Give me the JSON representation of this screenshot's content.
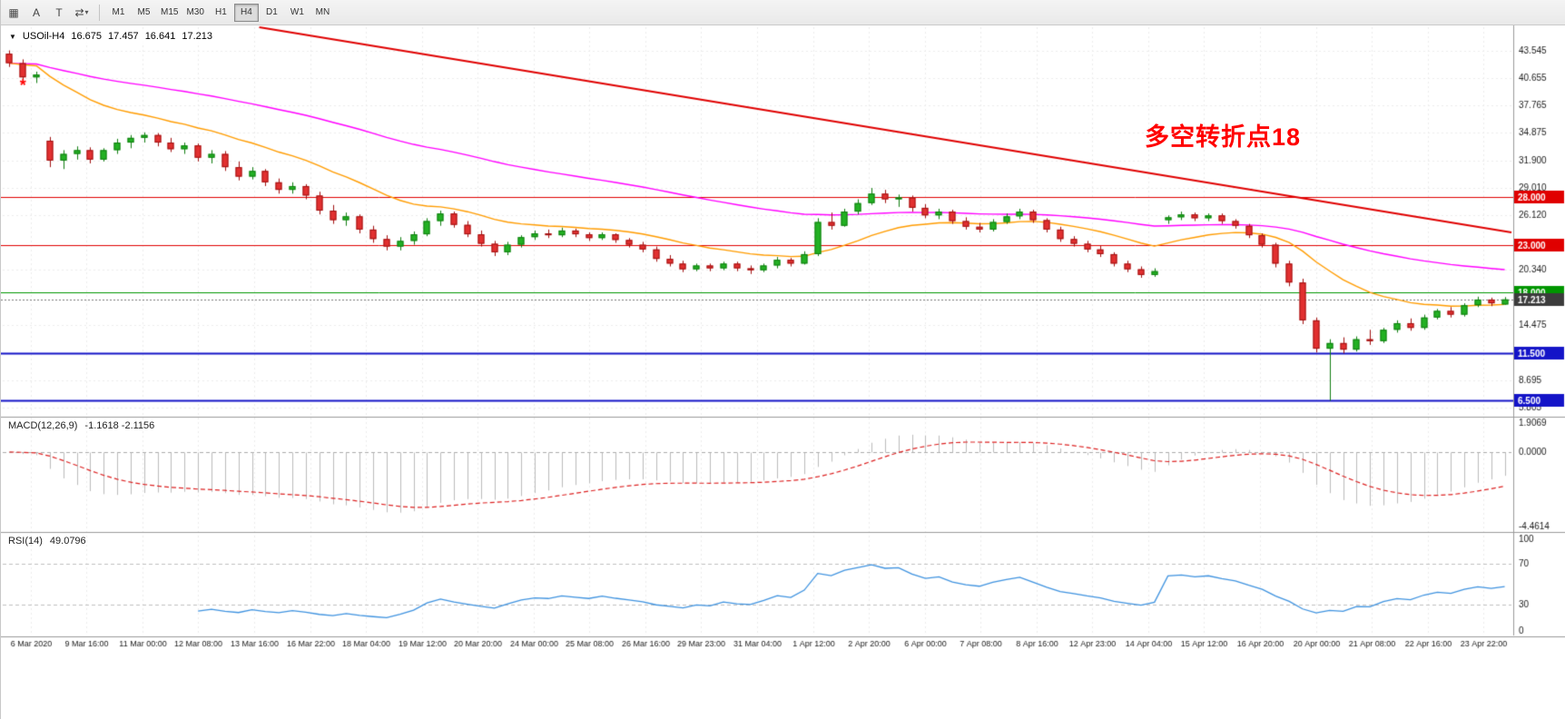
{
  "toolbar": {
    "icons": {
      "grid": "▦",
      "a": "A",
      "t": "T",
      "shapes": "⇄",
      "caret": "▾"
    },
    "timeframes": [
      {
        "label": "M1",
        "selected": false
      },
      {
        "label": "M5",
        "selected": false
      },
      {
        "label": "M15",
        "selected": false
      },
      {
        "label": "M30",
        "selected": false
      },
      {
        "label": "H1",
        "selected": false
      },
      {
        "label": "H4",
        "selected": true
      },
      {
        "label": "D1",
        "selected": false
      },
      {
        "label": "W1",
        "selected": false
      },
      {
        "label": "MN",
        "selected": false
      }
    ]
  },
  "info_line": {
    "collapse_glyph": "▼",
    "symbol": "USOil-H4",
    "open": "16.675",
    "high": "17.457",
    "low": "16.641",
    "close": "17.213"
  },
  "chart_data": {
    "type": "candlestick",
    "symbol": "USOil",
    "timeframe": "H4",
    "ylim": [
      5.0,
      46.0
    ],
    "up_color": "#23b123",
    "up_border": "#0f7d0f",
    "down_color": "#e23030",
    "down_border": "#a01010",
    "price_axis_labels": [
      "43.545",
      "40.655",
      "37.765",
      "34.875",
      "31.900",
      "29.010",
      "26.120",
      "20.340",
      "14.475",
      "8.695",
      "5.805"
    ],
    "x_labels": [
      "6 Mar 2020",
      "9 Mar 16:00",
      "11 Mar 00:00",
      "12 Mar 08:00",
      "13 Mar 16:00",
      "16 Mar 22:00",
      "18 Mar 04:00",
      "19 Mar 12:00",
      "20 Mar 20:00",
      "24 Mar 00:00",
      "25 Mar 08:00",
      "26 Mar 16:00",
      "29 Mar 23:00",
      "31 Mar 04:00",
      "1 Apr 12:00",
      "2 Apr 20:00",
      "6 Apr 00:00",
      "7 Apr 08:00",
      "8 Apr 16:00",
      "12 Apr 23:00",
      "14 Apr 04:00",
      "15 Apr 12:00",
      "16 Apr 20:00",
      "20 Apr 00:00",
      "21 Apr 08:00",
      "22 Apr 16:00",
      "23 Apr 22:00"
    ],
    "hlines": [
      {
        "price": 28.0,
        "label": "28.000",
        "color": "#e00000",
        "width": 1
      },
      {
        "price": 23.0,
        "label": "23.000",
        "color": "#e00000",
        "width": 1
      },
      {
        "price": 18.0,
        "label": "18.000",
        "color": "#009600",
        "width": 1
      },
      {
        "price": 11.5,
        "label": "11.500",
        "color": "#1414c8",
        "width": 2
      },
      {
        "price": 6.5,
        "label": "6.500",
        "color": "#1414c8",
        "width": 2
      }
    ],
    "current_price": {
      "price": 17.213,
      "label": "17.213",
      "line_color": "#777777",
      "tag_bg": "#3c3c3c"
    },
    "trendline": {
      "color": "#e00000",
      "width": 2,
      "x1_frac": 0.17,
      "price1": 46.0,
      "x2_frac": 1.0,
      "price2": 24.3
    },
    "ma_fast": {
      "color": "#ff9c00",
      "period": 17,
      "width": 1.4
    },
    "ma_slow": {
      "color": "#ff00ff",
      "period": 55,
      "width": 1.4
    },
    "marker": {
      "glyph": "*",
      "color": "#ff0000",
      "index": 1,
      "price": 39.9
    },
    "annotation": {
      "text": "多空转折点18",
      "color": "#ff0000"
    },
    "candles": [
      [
        43.2,
        43.55,
        41.8,
        42.2
      ],
      [
        42.2,
        42.6,
        40.3,
        40.7
      ],
      [
        40.7,
        41.3,
        40.1,
        41.0
      ],
      [
        34.0,
        34.4,
        31.2,
        31.9
      ],
      [
        31.9,
        33.0,
        31.0,
        32.6
      ],
      [
        32.6,
        33.4,
        32.0,
        33.0
      ],
      [
        33.0,
        33.3,
        31.6,
        32.0
      ],
      [
        32.0,
        33.2,
        31.8,
        33.0
      ],
      [
        33.0,
        34.2,
        32.6,
        33.8
      ],
      [
        33.8,
        34.6,
        33.2,
        34.3
      ],
      [
        34.3,
        34.88,
        33.8,
        34.6
      ],
      [
        34.6,
        34.8,
        33.4,
        33.8
      ],
      [
        33.8,
        34.3,
        32.8,
        33.1
      ],
      [
        33.1,
        33.8,
        32.6,
        33.5
      ],
      [
        33.5,
        33.7,
        31.8,
        32.2
      ],
      [
        32.2,
        33.0,
        31.6,
        32.6
      ],
      [
        32.6,
        32.9,
        30.8,
        31.2
      ],
      [
        31.2,
        31.8,
        29.8,
        30.2
      ],
      [
        30.2,
        31.2,
        29.9,
        30.8
      ],
      [
        30.8,
        31.0,
        29.2,
        29.6
      ],
      [
        29.6,
        30.0,
        28.4,
        28.8
      ],
      [
        28.8,
        29.6,
        28.4,
        29.2
      ],
      [
        29.2,
        29.4,
        27.8,
        28.2
      ],
      [
        28.2,
        28.6,
        26.2,
        26.6
      ],
      [
        26.6,
        27.2,
        25.2,
        25.6
      ],
      [
        25.6,
        26.4,
        25.0,
        26.0
      ],
      [
        26.0,
        26.2,
        24.2,
        24.6
      ],
      [
        24.6,
        25.0,
        23.2,
        23.6
      ],
      [
        23.6,
        24.0,
        22.4,
        22.8
      ],
      [
        22.8,
        23.8,
        22.4,
        23.4
      ],
      [
        23.4,
        24.4,
        23.0,
        24.1
      ],
      [
        24.1,
        25.8,
        23.9,
        25.5
      ],
      [
        25.5,
        26.6,
        25.0,
        26.3
      ],
      [
        26.3,
        26.5,
        24.8,
        25.1
      ],
      [
        25.1,
        25.5,
        23.8,
        24.1
      ],
      [
        24.1,
        24.5,
        22.8,
        23.1
      ],
      [
        23.1,
        23.4,
        21.8,
        22.2
      ],
      [
        22.2,
        23.3,
        21.9,
        23.0
      ],
      [
        23.0,
        24.0,
        22.7,
        23.8
      ],
      [
        23.8,
        24.5,
        23.5,
        24.2
      ],
      [
        24.2,
        24.6,
        23.7,
        24.0
      ],
      [
        24.0,
        24.8,
        23.8,
        24.5
      ],
      [
        24.5,
        24.7,
        23.8,
        24.1
      ],
      [
        24.1,
        24.3,
        23.4,
        23.7
      ],
      [
        23.7,
        24.3,
        23.5,
        24.1
      ],
      [
        24.1,
        24.2,
        23.2,
        23.5
      ],
      [
        23.5,
        23.7,
        22.7,
        23.0
      ],
      [
        23.0,
        23.3,
        22.2,
        22.5
      ],
      [
        22.5,
        22.8,
        21.2,
        21.5
      ],
      [
        21.5,
        21.9,
        20.7,
        21.0
      ],
      [
        21.0,
        21.3,
        20.1,
        20.4
      ],
      [
        20.4,
        21.0,
        20.2,
        20.8
      ],
      [
        20.8,
        21.0,
        20.2,
        20.5
      ],
      [
        20.5,
        21.2,
        20.3,
        21.0
      ],
      [
        21.0,
        21.2,
        20.2,
        20.5
      ],
      [
        20.5,
        20.8,
        19.9,
        20.3
      ],
      [
        20.3,
        21.0,
        20.1,
        20.8
      ],
      [
        20.8,
        21.7,
        20.5,
        21.4
      ],
      [
        21.4,
        21.6,
        20.7,
        21.0
      ],
      [
        21.0,
        22.3,
        20.9,
        22.0
      ],
      [
        22.0,
        25.8,
        21.8,
        25.4
      ],
      [
        25.4,
        26.4,
        24.6,
        25.0
      ],
      [
        25.0,
        26.8,
        24.9,
        26.5
      ],
      [
        26.5,
        27.8,
        26.2,
        27.4
      ],
      [
        27.4,
        29.0,
        27.2,
        28.4
      ],
      [
        28.4,
        28.8,
        27.4,
        27.8
      ],
      [
        27.8,
        28.3,
        27.0,
        28.0
      ],
      [
        28.0,
        28.2,
        26.5,
        26.9
      ],
      [
        26.9,
        27.3,
        25.8,
        26.1
      ],
      [
        26.1,
        26.8,
        25.7,
        26.5
      ],
      [
        26.5,
        26.7,
        25.2,
        25.5
      ],
      [
        25.5,
        25.9,
        24.6,
        24.9
      ],
      [
        24.9,
        25.3,
        24.3,
        24.6
      ],
      [
        24.6,
        25.7,
        24.4,
        25.4
      ],
      [
        25.4,
        26.3,
        25.2,
        26.0
      ],
      [
        26.0,
        26.8,
        25.7,
        26.5
      ],
      [
        26.5,
        26.7,
        25.3,
        25.6
      ],
      [
        25.6,
        25.8,
        24.3,
        24.6
      ],
      [
        24.6,
        24.9,
        23.3,
        23.6
      ],
      [
        23.6,
        23.9,
        22.8,
        23.1
      ],
      [
        23.1,
        23.4,
        22.2,
        22.5
      ],
      [
        22.5,
        22.9,
        21.7,
        22.0
      ],
      [
        22.0,
        22.2,
        20.7,
        21.0
      ],
      [
        21.0,
        21.3,
        20.1,
        20.4
      ],
      [
        20.4,
        20.7,
        19.5,
        19.8
      ],
      [
        19.8,
        20.5,
        19.6,
        20.2
      ],
      [
        25.6,
        26.1,
        25.2,
        25.9
      ],
      [
        25.9,
        26.5,
        25.6,
        26.2
      ],
      [
        26.2,
        26.4,
        25.5,
        25.8
      ],
      [
        25.8,
        26.3,
        25.5,
        26.1
      ],
      [
        26.1,
        26.3,
        25.2,
        25.5
      ],
      [
        25.5,
        25.7,
        24.7,
        25.0
      ],
      [
        25.0,
        25.2,
        23.7,
        24.0
      ],
      [
        24.0,
        24.2,
        22.7,
        23.0
      ],
      [
        23.0,
        23.2,
        20.6,
        21.0
      ],
      [
        21.0,
        21.3,
        18.6,
        19.0
      ],
      [
        19.0,
        19.4,
        14.6,
        15.0
      ],
      [
        15.0,
        15.3,
        11.6,
        12.0
      ],
      [
        12.0,
        13.0,
        6.5,
        12.6
      ],
      [
        12.6,
        13.2,
        11.5,
        11.9
      ],
      [
        11.9,
        13.3,
        11.7,
        13.0
      ],
      [
        13.0,
        14.0,
        12.4,
        12.8
      ],
      [
        12.8,
        14.2,
        12.6,
        14.0
      ],
      [
        14.0,
        15.0,
        13.7,
        14.7
      ],
      [
        14.7,
        15.2,
        13.9,
        14.2
      ],
      [
        14.2,
        15.6,
        14.0,
        15.3
      ],
      [
        15.3,
        16.2,
        15.1,
        16.0
      ],
      [
        16.0,
        16.4,
        15.3,
        15.6
      ],
      [
        15.6,
        16.8,
        15.4,
        16.6
      ],
      [
        16.6,
        17.5,
        16.4,
        17.2
      ],
      [
        17.2,
        17.4,
        16.5,
        16.8
      ],
      [
        16.675,
        17.457,
        16.641,
        17.213
      ]
    ]
  },
  "macd_panel": {
    "title": "MACD(12,26,9)",
    "values": "-1.1618 -2.1156",
    "fast": 12,
    "slow": 26,
    "signal_period": 9,
    "ylim": [
      -4.4614,
      1.9069
    ],
    "scale_labels": [
      "1.9069",
      "0.0000",
      "-4.4614"
    ],
    "bar_color": "#bbbbbb",
    "signal_color": "#dd2222",
    "zero_line_color": "#aaaaaa"
  },
  "rsi_panel": {
    "title": "RSI(14)",
    "value": "49.0796",
    "period": 14,
    "ylim": [
      0,
      100
    ],
    "levels": [
      70,
      30
    ],
    "scale_labels": [
      "100",
      "70",
      "30",
      "0"
    ],
    "line_color": "#3f93e0",
    "level_color": "#c0c0c0"
  }
}
